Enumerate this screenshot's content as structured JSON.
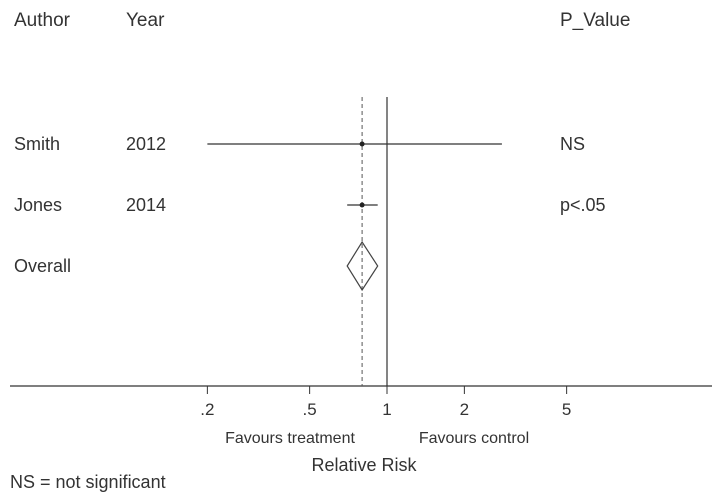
{
  "header": {
    "author": "Author",
    "year": "Year",
    "pvalue": "P_Value"
  },
  "chart_data": {
    "type": "forest",
    "x_scale": "log",
    "xlim": [
      0.2,
      5
    ],
    "xticks": [
      {
        "value": 0.2,
        "label": ".2"
      },
      {
        "value": 0.5,
        "label": ".5"
      },
      {
        "value": 1,
        "label": "1"
      },
      {
        "value": 2,
        "label": "2"
      },
      {
        "value": 5,
        "label": "5"
      }
    ],
    "xlabel": "Relative Risk",
    "reference_line": 1,
    "pooled_line": 0.8,
    "left_annotation": "Favours treatment",
    "right_annotation": "Favours control",
    "studies": [
      {
        "author": "Smith",
        "year": "2012",
        "estimate": 0.8,
        "ci_low": 0.2,
        "ci_high": 2.8,
        "p_value": "NS"
      },
      {
        "author": "Jones",
        "year": "2014",
        "estimate": 0.8,
        "ci_low": 0.7,
        "ci_high": 0.92,
        "p_value": "p<.05"
      }
    ],
    "overall": {
      "label": "Overall",
      "estimate": 0.8,
      "ci_low": 0.7,
      "ci_high": 0.92
    }
  },
  "footnote": "NS = not significant"
}
